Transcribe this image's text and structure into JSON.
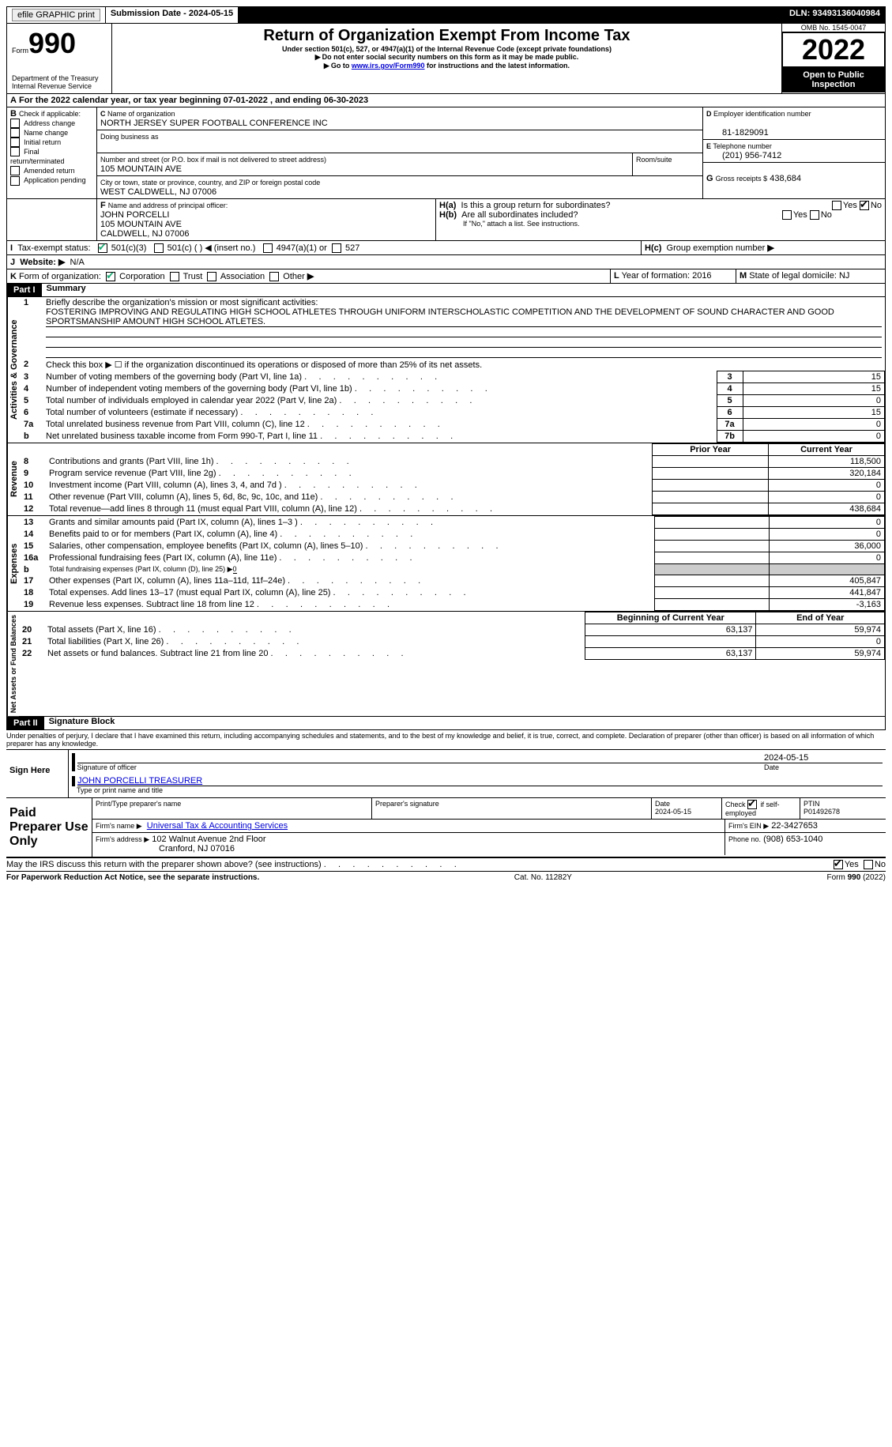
{
  "topbar": {
    "efile": "efile GRAPHIC print",
    "submission_label": "Submission Date - ",
    "submission_date": "2024-05-15",
    "dln_label": "DLN: ",
    "dln": "93493136040984"
  },
  "header": {
    "form_word": "Form",
    "form_num": "990",
    "dept": "Department of the Treasury\nInternal Revenue Service",
    "title": "Return of Organization Exempt From Income Tax",
    "subtitle": "Under section 501(c), 527, or 4947(a)(1) of the Internal Revenue Code (except private foundations)",
    "note1": "Do not enter social security numbers on this form as it may be made public.",
    "note2_pre": "Go to ",
    "note2_link": "www.irs.gov/Form990",
    "note2_post": " for instructions and the latest information.",
    "omb": "OMB No. 1545-0047",
    "year": "2022",
    "inspect": "Open to Public Inspection"
  },
  "A": {
    "text_pre": "For the 2022 calendar year, or tax year beginning ",
    "begin": "07-01-2022",
    "mid": " , and ending ",
    "end": "06-30-2023"
  },
  "B": {
    "label": "Check if applicable:",
    "opts": [
      "Address change",
      "Name change",
      "Initial return",
      "Final return/terminated",
      "Amended return",
      "Application pending"
    ]
  },
  "C": {
    "name_label": "Name of organization",
    "name": "NORTH JERSEY SUPER FOOTBALL CONFERENCE INC",
    "dba_label": "Doing business as",
    "street_label": "Number and street (or P.O. box if mail is not delivered to street address)",
    "room_label": "Room/suite",
    "street": "105 MOUNTAIN AVE",
    "city_label": "City or town, state or province, country, and ZIP or foreign postal code",
    "city": "WEST CALDWELL, NJ  07006"
  },
  "D": {
    "label": "Employer identification number",
    "value": "81-1829091"
  },
  "E": {
    "label": "Telephone number",
    "value": "(201) 956-7412"
  },
  "G": {
    "label": "Gross receipts $",
    "value": "438,684"
  },
  "F": {
    "label": "Name and address of principal officer:",
    "name": "JOHN PORCELLI",
    "street": "105 MOUNTAIN AVE",
    "city": "CALDWELL, NJ  07006"
  },
  "H": {
    "a": "Is this a group return for subordinates?",
    "b": "Are all subordinates included?",
    "b_note": "If \"No,\" attach a list. See instructions.",
    "c": "Group exemption number"
  },
  "I": {
    "label": "Tax-exempt status:",
    "o1": "501(c)(3)",
    "o2": "501(c) (  ) ◀ (insert no.)",
    "o3": "4947(a)(1) or",
    "o4": "527"
  },
  "J": {
    "label": "Website:",
    "value": "N/A"
  },
  "K": {
    "label": "Form of organization:",
    "o1": "Corporation",
    "o2": "Trust",
    "o3": "Association",
    "o4": "Other"
  },
  "L": {
    "label": "Year of formation:",
    "value": "2016"
  },
  "M": {
    "label": "State of legal domicile:",
    "value": "NJ"
  },
  "part1": {
    "header": "Part I",
    "title": "Summary",
    "l1_label": "Briefly describe the organization's mission or most significant activities:",
    "l1_text": "FOSTERING IMPROVING AND REGULATING HIGH SCHOOL ATHLETES THROUGH UNIFORM INTERSCHOLASTIC COMPETITION AND THE DEVELOPMENT OF SOUND CHARACTER AND GOOD SPORTSMANSHIP AMOUNT HIGH SCHOOL ATLETES.",
    "l2": "Check this box ▶ ☐ if the organization discontinued its operations or disposed of more than 25% of its net assets.",
    "sidebar_ag": "Activities & Governance",
    "sidebar_rev": "Revenue",
    "sidebar_exp": "Expenses",
    "sidebar_net": "Net Assets or Fund Balances",
    "lines_ag": [
      {
        "n": "3",
        "t": "Number of voting members of the governing body (Part VI, line 1a)",
        "v": "15"
      },
      {
        "n": "4",
        "t": "Number of independent voting members of the governing body (Part VI, line 1b)",
        "v": "15"
      },
      {
        "n": "5",
        "t": "Total number of individuals employed in calendar year 2022 (Part V, line 2a)",
        "v": "0"
      },
      {
        "n": "6",
        "t": "Total number of volunteers (estimate if necessary)",
        "v": "15"
      },
      {
        "n": "7a",
        "t": "Total unrelated business revenue from Part VIII, column (C), line 12",
        "v": "0"
      },
      {
        "n": "b",
        "t": "Net unrelated business taxable income from Form 990-T, Part I, line 11",
        "lbl": "7b",
        "v": "0"
      }
    ],
    "col_prior": "Prior Year",
    "col_current": "Current Year",
    "lines_rev": [
      {
        "n": "8",
        "t": "Contributions and grants (Part VIII, line 1h)",
        "p": "",
        "c": "118,500"
      },
      {
        "n": "9",
        "t": "Program service revenue (Part VIII, line 2g)",
        "p": "",
        "c": "320,184"
      },
      {
        "n": "10",
        "t": "Investment income (Part VIII, column (A), lines 3, 4, and 7d )",
        "p": "",
        "c": "0"
      },
      {
        "n": "11",
        "t": "Other revenue (Part VIII, column (A), lines 5, 6d, 8c, 9c, 10c, and 11e)",
        "p": "",
        "c": "0"
      },
      {
        "n": "12",
        "t": "Total revenue—add lines 8 through 11 (must equal Part VIII, column (A), line 12)",
        "p": "",
        "c": "438,684"
      }
    ],
    "lines_exp": [
      {
        "n": "13",
        "t": "Grants and similar amounts paid (Part IX, column (A), lines 1–3 )",
        "p": "",
        "c": "0"
      },
      {
        "n": "14",
        "t": "Benefits paid to or for members (Part IX, column (A), line 4)",
        "p": "",
        "c": "0"
      },
      {
        "n": "15",
        "t": "Salaries, other compensation, employee benefits (Part IX, column (A), lines 5–10)",
        "p": "",
        "c": "36,000"
      },
      {
        "n": "16a",
        "t": "Professional fundraising fees (Part IX, column (A), line 11e)",
        "p": "",
        "c": "0"
      },
      {
        "n": "b",
        "t": "Total fundraising expenses (Part IX, column (D), line 25) ▶",
        "sub": "0",
        "shaded": true
      },
      {
        "n": "17",
        "t": "Other expenses (Part IX, column (A), lines 11a–11d, 11f–24e)",
        "p": "",
        "c": "405,847"
      },
      {
        "n": "18",
        "t": "Total expenses. Add lines 13–17 (must equal Part IX, column (A), line 25)",
        "p": "",
        "c": "441,847"
      },
      {
        "n": "19",
        "t": "Revenue less expenses. Subtract line 18 from line 12",
        "p": "",
        "c": "-3,163"
      }
    ],
    "col_begin": "Beginning of Current Year",
    "col_end": "End of Year",
    "lines_net": [
      {
        "n": "20",
        "t": "Total assets (Part X, line 16)",
        "p": "63,137",
        "c": "59,974"
      },
      {
        "n": "21",
        "t": "Total liabilities (Part X, line 26)",
        "p": "",
        "c": "0"
      },
      {
        "n": "22",
        "t": "Net assets or fund balances. Subtract line 21 from line 20",
        "p": "63,137",
        "c": "59,974"
      }
    ]
  },
  "part2": {
    "header": "Part II",
    "title": "Signature Block",
    "jurat": "Under penalties of perjury, I declare that I have examined this return, including accompanying schedules and statements, and to the best of my knowledge and belief, it is true, correct, and complete. Declaration of preparer (other than officer) is based on all information of which preparer has any knowledge.",
    "sign_here": "Sign Here",
    "sig_officer": "Signature of officer",
    "sig_date": "2024-05-15",
    "date_lbl": "Date",
    "officer_name": "JOHN PORCELLI TREASURER",
    "officer_name_lbl": "Type or print name and title",
    "paid": "Paid Preparer Use Only",
    "prep_name_lbl": "Print/Type preparer's name",
    "prep_sig_lbl": "Preparer's signature",
    "prep_date_lbl": "Date",
    "prep_date": "2024-05-15",
    "check_if": "Check ☑ if self-employed",
    "ptin_lbl": "PTIN",
    "ptin": "P01492678",
    "firm_name_lbl": "Firm's name    ▶",
    "firm_name": "Universal Tax & Accounting Services",
    "firm_ein_lbl": "Firm's EIN ▶",
    "firm_ein": "22-3427653",
    "firm_addr_lbl": "Firm's address ▶",
    "firm_addr1": "102 Walnut Avenue 2nd Floor",
    "firm_addr2": "Cranford, NJ  07016",
    "firm_phone_lbl": "Phone no.",
    "firm_phone": "(908) 653-1040",
    "discuss": "May the IRS discuss this return with the preparer shown above? (see instructions)"
  },
  "footer": {
    "left": "For Paperwork Reduction Act Notice, see the separate instructions.",
    "mid": "Cat. No. 11282Y",
    "right": "Form 990 (2022)"
  },
  "yn": {
    "yes": "Yes",
    "no": "No"
  }
}
